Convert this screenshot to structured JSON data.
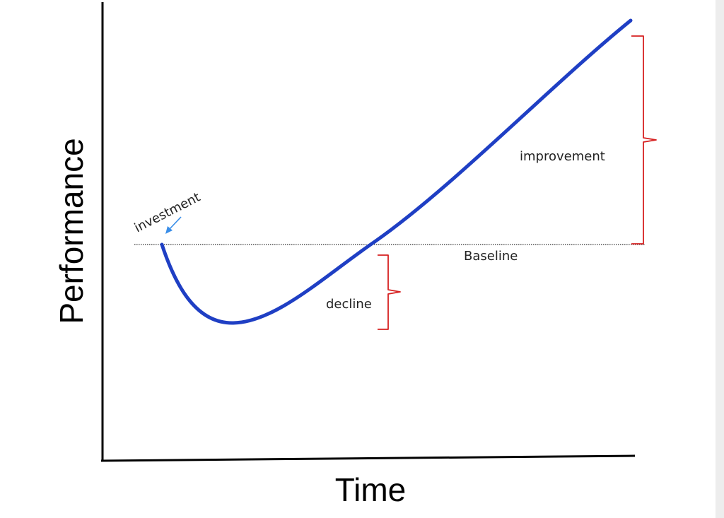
{
  "diagram": {
    "y_axis_label": "Performance",
    "x_axis_label": "Time",
    "annotations": {
      "investment": "investment",
      "baseline": "Baseline",
      "decline": "decline",
      "improvement": "improvement"
    },
    "colors": {
      "curve": "#1f3fc4",
      "arrow": "#3a8ee8",
      "brace": "#d62020",
      "axis": "#000000",
      "baseline": "#333333"
    }
  }
}
